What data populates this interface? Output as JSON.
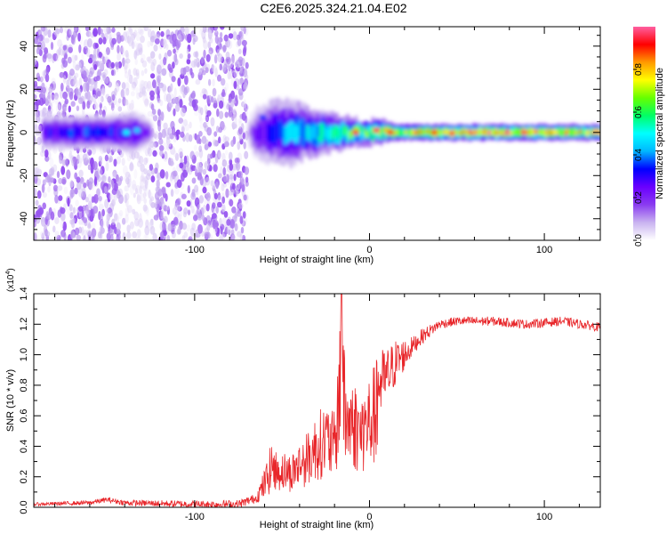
{
  "title": "C2E6.2025.324.21.04.E02",
  "colors": {
    "snr_line": "#e8262a",
    "spectrum_colormap": [
      "#ffffff",
      "#c9b3f0",
      "#8a3cf0",
      "#6a00ff",
      "#0000ff",
      "#00b7ff",
      "#00ffff",
      "#00ff66",
      "#66ff00",
      "#ffff00",
      "#ff9900",
      "#ff0000",
      "#ff5fa0"
    ]
  },
  "chart_data": [
    {
      "type": "heatmap",
      "name": "spectrogram",
      "xlabel": "Height of straight line (km)",
      "ylabel": "Frequency (Hz)",
      "xlim": [
        -192,
        132
      ],
      "ylim": [
        -50,
        49
      ],
      "xticks": [
        -100,
        0,
        100
      ],
      "xtick_labels": [
        "-100",
        "0",
        "100"
      ],
      "yticks": [
        -40,
        -20,
        0,
        20,
        40
      ],
      "ytick_labels": [
        "-40",
        "-20",
        "0",
        "20",
        "40"
      ],
      "noise_region_x": [
        -192,
        -70
      ],
      "noise_gap_x": [
        -140,
        -125
      ],
      "signal_band": [
        {
          "x": -188,
          "halfwidth": 4,
          "amp": 0.28
        },
        {
          "x": -165,
          "halfwidth": 4,
          "amp": 0.32
        },
        {
          "x": -150,
          "halfwidth": 4,
          "amp": 0.3
        },
        {
          "x": -135,
          "halfwidth": 5,
          "amp": 0.28
        },
        {
          "x": -125,
          "halfwidth": 3,
          "amp": 0.15
        },
        {
          "x": -70,
          "halfwidth": 3,
          "amp": 0.1
        },
        {
          "x": -66,
          "halfwidth": 6,
          "amp": 0.2
        },
        {
          "x": -55,
          "halfwidth": 8,
          "amp": 0.35
        },
        {
          "x": -45,
          "halfwidth": 8,
          "amp": 0.4
        },
        {
          "x": -35,
          "halfwidth": 6,
          "amp": 0.45
        },
        {
          "x": -25,
          "halfwidth": 5,
          "amp": 0.5
        },
        {
          "x": -15,
          "halfwidth": 4,
          "amp": 0.55
        },
        {
          "x": -5,
          "halfwidth": 3,
          "amp": 0.6
        },
        {
          "x": 5,
          "halfwidth": 3,
          "amp": 0.65
        },
        {
          "x": 15,
          "halfwidth": 2,
          "amp": 0.75
        },
        {
          "x": 40,
          "halfwidth": 2,
          "amp": 0.8
        },
        {
          "x": 70,
          "halfwidth": 2,
          "amp": 0.85
        },
        {
          "x": 100,
          "halfwidth": 2,
          "amp": 0.8
        },
        {
          "x": 132,
          "halfwidth": 2,
          "amp": 0.7
        }
      ],
      "hotspots": [
        {
          "x": -139,
          "y": 0,
          "amp": 0.5
        },
        {
          "x": -133,
          "y": 1,
          "amp": 0.45
        },
        {
          "x": -61,
          "y": 7,
          "amp": 0.35
        },
        {
          "x": -28,
          "y": -3,
          "amp": 0.55
        },
        {
          "x": -8,
          "y": 0,
          "amp": 0.95
        },
        {
          "x": 4,
          "y": 1,
          "amp": 0.95
        },
        {
          "x": 12,
          "y": 0,
          "amp": 0.9
        },
        {
          "x": 37,
          "y": 0,
          "amp": 0.9
        },
        {
          "x": 98,
          "y": 0,
          "amp": 0.7
        }
      ],
      "colorbar": {
        "label": "Normalized spectral amplitude",
        "range": [
          0,
          1
        ],
        "ticks": [
          0.0,
          0.2,
          0.4,
          0.6,
          0.8
        ],
        "tick_labels": [
          "0.0",
          "0.2",
          "0.4",
          "0.6",
          "0.8"
        ]
      }
    },
    {
      "type": "line",
      "name": "snr",
      "xlabel": "Height of straight line (km)",
      "ylabel": "SNR (10 * v/v)",
      "y_multiplier_label": "(x10",
      "y_multiplier_exponent": "4",
      "y_multiplier_close": ")",
      "xlim": [
        -192,
        132
      ],
      "ylim": [
        0,
        1.4
      ],
      "xticks": [
        -100,
        0,
        100
      ],
      "xtick_labels": [
        "-100",
        "0",
        "100"
      ],
      "yticks": [
        0.0,
        0.2,
        0.4,
        0.6,
        0.8,
        1.0,
        1.2,
        1.4
      ],
      "ytick_labels": [
        "0.0",
        "0.2",
        "0.4",
        "0.6",
        "0.8",
        "1.0",
        "1.2",
        "1.4"
      ],
      "series": [
        {
          "name": "SNR",
          "x": [
            -192,
            -160,
            -150,
            -140,
            -100,
            -75,
            -65,
            -60,
            -55,
            -50,
            -45,
            -40,
            -35,
            -30,
            -25,
            -20,
            -18,
            -16,
            -14,
            -10,
            -5,
            0,
            5,
            10,
            15,
            20,
            30,
            40,
            50,
            70,
            90,
            110,
            132
          ],
          "y": [
            0.02,
            0.03,
            0.05,
            0.03,
            0.02,
            0.02,
            0.06,
            0.15,
            0.3,
            0.3,
            0.28,
            0.35,
            0.4,
            0.5,
            0.55,
            0.5,
            0.75,
            1.45,
            0.7,
            0.7,
            0.6,
            0.7,
            0.8,
            0.85,
            0.95,
            1.0,
            1.12,
            1.2,
            1.22,
            1.22,
            1.2,
            1.22,
            1.18
          ]
        }
      ],
      "noise_amplitude": [
        {
          "x": -192,
          "amp": 0.01
        },
        {
          "x": -65,
          "amp": 0.03
        },
        {
          "x": -55,
          "amp": 0.18
        },
        {
          "x": -30,
          "amp": 0.3
        },
        {
          "x": -10,
          "amp": 0.35
        },
        {
          "x": 10,
          "amp": 0.2
        },
        {
          "x": 25,
          "amp": 0.06
        },
        {
          "x": 40,
          "amp": 0.03
        },
        {
          "x": 132,
          "amp": 0.03
        }
      ]
    }
  ]
}
